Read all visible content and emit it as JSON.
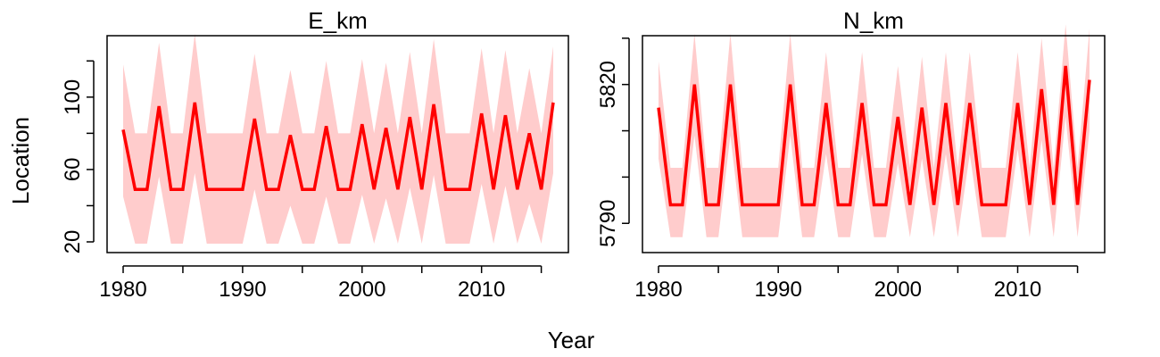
{
  "figure": {
    "xlabel": "Year",
    "ylabel": "Location"
  },
  "colors": {
    "line": "#ff0000",
    "band": "#ffcccc"
  },
  "chart_data": [
    {
      "type": "line",
      "title": "E_km",
      "xlim": [
        1980,
        2016
      ],
      "ylim": [
        20,
        130
      ],
      "x_ticks": [
        1980,
        1990,
        2000,
        2010
      ],
      "x_minor_ticks": [
        1985,
        1995,
        2005,
        2015
      ],
      "y_ticks": [
        20,
        60,
        100
      ],
      "y_minor_ticks": [
        40,
        80,
        120
      ],
      "x": [
        1980,
        1981,
        1982,
        1983,
        1984,
        1985,
        1986,
        1987,
        1988,
        1989,
        1990,
        1991,
        1992,
        1993,
        1994,
        1995,
        1996,
        1997,
        1998,
        1999,
        2000,
        2001,
        2002,
        2003,
        2004,
        2005,
        2006,
        2007,
        2008,
        2009,
        2010,
        2011,
        2012,
        2013,
        2014,
        2015,
        2016
      ],
      "series": [
        {
          "values": [
            82,
            49,
            49,
            95,
            49,
            49,
            97,
            49,
            49,
            49,
            49,
            88,
            49,
            49,
            79,
            49,
            49,
            84,
            49,
            49,
            85,
            49,
            83,
            49,
            89,
            49,
            96,
            49,
            49,
            49,
            91,
            49,
            90,
            49,
            80,
            49,
            97
          ],
          "lower": [
            45,
            19,
            19,
            56,
            19,
            19,
            58,
            19,
            19,
            19,
            19,
            49,
            19,
            19,
            40,
            19,
            19,
            45,
            19,
            19,
            46,
            19,
            44,
            19,
            50,
            19,
            57,
            19,
            19,
            19,
            52,
            19,
            51,
            19,
            41,
            19,
            58
          ],
          "upper": [
            118,
            80,
            80,
            130,
            80,
            80,
            135,
            80,
            80,
            80,
            80,
            124,
            80,
            80,
            115,
            80,
            80,
            120,
            80,
            80,
            121,
            80,
            119,
            80,
            125,
            80,
            132,
            80,
            80,
            80,
            127,
            80,
            126,
            80,
            116,
            80,
            128
          ]
        }
      ]
    },
    {
      "type": "line",
      "title": "N_km",
      "xlim": [
        1980,
        2016
      ],
      "ylim": [
        5786,
        5829
      ],
      "x_ticks": [
        1980,
        1990,
        2000,
        2010
      ],
      "x_minor_ticks": [
        1985,
        1995,
        2005,
        2015
      ],
      "y_ticks": [
        5790,
        5820
      ],
      "y_minor_ticks": [
        5800,
        5810,
        5830
      ],
      "x": [
        1980,
        1981,
        1982,
        1983,
        1984,
        1985,
        1986,
        1987,
        1988,
        1989,
        1990,
        1991,
        1992,
        1993,
        1994,
        1995,
        1996,
        1997,
        1998,
        1999,
        2000,
        2001,
        2002,
        2003,
        2004,
        2005,
        2006,
        2007,
        2008,
        2009,
        2010,
        2011,
        2012,
        2013,
        2014,
        2015,
        2016
      ],
      "series": [
        {
          "values": [
            5815,
            5794,
            5794,
            5820,
            5794,
            5794,
            5820,
            5794,
            5794,
            5794,
            5794,
            5820,
            5794,
            5794,
            5816,
            5794,
            5794,
            5816,
            5794,
            5794,
            5813,
            5794,
            5815,
            5794,
            5816,
            5794,
            5816,
            5794,
            5794,
            5794,
            5816,
            5794,
            5819,
            5794,
            5824,
            5794,
            5821
          ],
          "lower": [
            5804,
            5787,
            5787,
            5809,
            5787,
            5787,
            5809,
            5787,
            5787,
            5787,
            5787,
            5809,
            5787,
            5787,
            5805,
            5787,
            5787,
            5805,
            5787,
            5787,
            5803,
            5787,
            5804,
            5787,
            5805,
            5787,
            5805,
            5787,
            5787,
            5787,
            5806,
            5787,
            5808,
            5787,
            5813,
            5787,
            5810
          ],
          "upper": [
            5825,
            5802,
            5802,
            5831,
            5802,
            5802,
            5831,
            5802,
            5802,
            5802,
            5802,
            5831,
            5802,
            5802,
            5827,
            5802,
            5802,
            5827,
            5802,
            5802,
            5824,
            5802,
            5826,
            5802,
            5827,
            5802,
            5827,
            5802,
            5802,
            5802,
            5827,
            5802,
            5830,
            5802,
            5833,
            5802,
            5832
          ]
        }
      ]
    }
  ]
}
